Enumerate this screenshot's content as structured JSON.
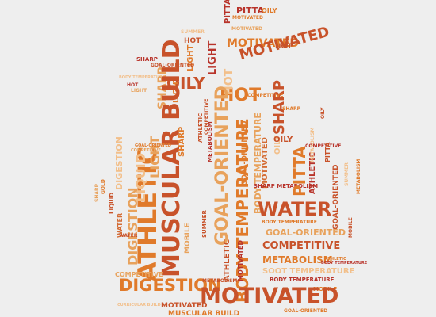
{
  "words": {
    "pitta": "PITTA",
    "motivated": "MOTIVATED",
    "light": "LIGHT",
    "hot": "HOT",
    "oily": "OILY",
    "sharp": "SHARP",
    "muscular_build": "MUSCULAR BUILD",
    "athletic": "ATHLETIC",
    "goal_oriented": "GOAL-ORIENTED",
    "body_temperature": "BODY TEMPERATURE",
    "competitive": "COMPETITIVE",
    "metabolism": "METABOLISM",
    "digestion": "DIGESTION",
    "water": "WATER",
    "liquid": "LIQUID",
    "mobile": "MOBILE",
    "summer": "SUMMER",
    "sharp_metabolism": "SHARP METABOLISM",
    "soot_temperature": "SOOT TEMPERATURE",
    "gold": "GOLD",
    "curricular_build": "CURRICULAR BUILD"
  },
  "colors": {
    "background": "#eeeeee",
    "palette": [
      "#e8a25c",
      "#e07a2a",
      "#c8522a",
      "#b8332a",
      "#f2bf8a",
      "#d46c34"
    ]
  }
}
